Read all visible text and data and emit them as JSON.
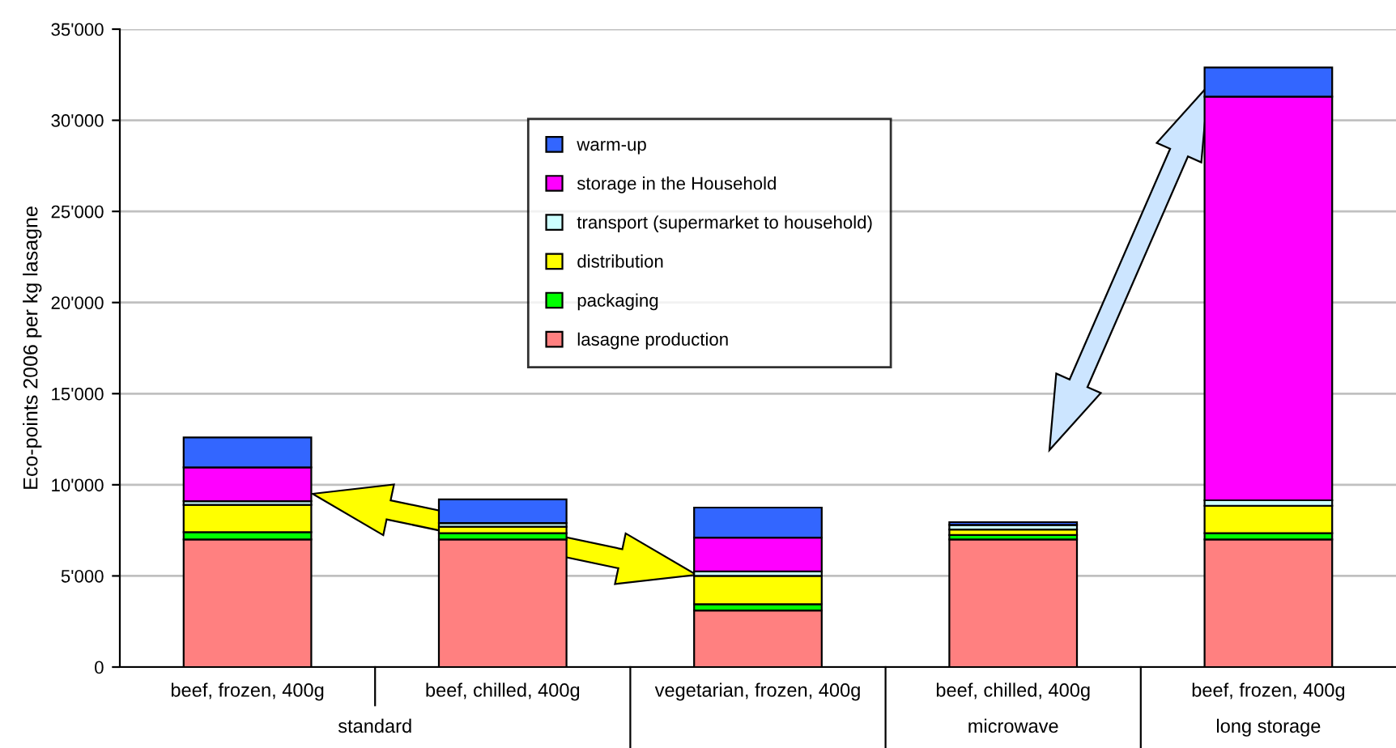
{
  "chart_data": {
    "type": "bar",
    "stacked": true,
    "ylabel": "Eco-points 2006 per kg lasagne",
    "categories": [
      "beef, frozen, 400g",
      "beef, chilled, 400g",
      "vegetarian, frozen, 400g",
      "beef, chilled, 400g",
      "beef, frozen, 400g"
    ],
    "series": [
      {
        "name": "lasagne production",
        "color": "#ff8080",
        "values": [
          7000,
          7000,
          3100,
          7000,
          7000
        ]
      },
      {
        "name": "packaging",
        "color": "#00ff00",
        "values": [
          400,
          350,
          350,
          250,
          350
        ]
      },
      {
        "name": "distribution",
        "color": "#ffff00",
        "values": [
          1500,
          350,
          1550,
          300,
          1500
        ]
      },
      {
        "name": "transport (supermarket to household)",
        "color": "#ccffff",
        "values": [
          200,
          200,
          250,
          250,
          300
        ]
      },
      {
        "name": "storage in the Household",
        "color": "#ff00ff",
        "values": [
          1850,
          0,
          1850,
          null,
          22150
        ]
      },
      {
        "name": "warm-up",
        "color": "#3366ff",
        "values": [
          1650,
          1300,
          1650,
          150,
          1600
        ]
      }
    ],
    "ylim": [
      0,
      35000
    ],
    "yticks": [
      0,
      {
        "value": 5000,
        "label": "5'000"
      },
      {
        "value": 10000,
        "label": "10'000"
      },
      {
        "value": 15000,
        "label": "15'000"
      },
      {
        "value": 20000,
        "label": "20'000"
      },
      {
        "value": 25000,
        "label": "25'000"
      },
      {
        "value": 30000,
        "label": "30'000"
      },
      {
        "value": 35000,
        "label": "35'000"
      }
    ],
    "grid": "y",
    "legend": "top",
    "annotations": [
      "standard",
      "microwave",
      "long storage"
    ]
  }
}
